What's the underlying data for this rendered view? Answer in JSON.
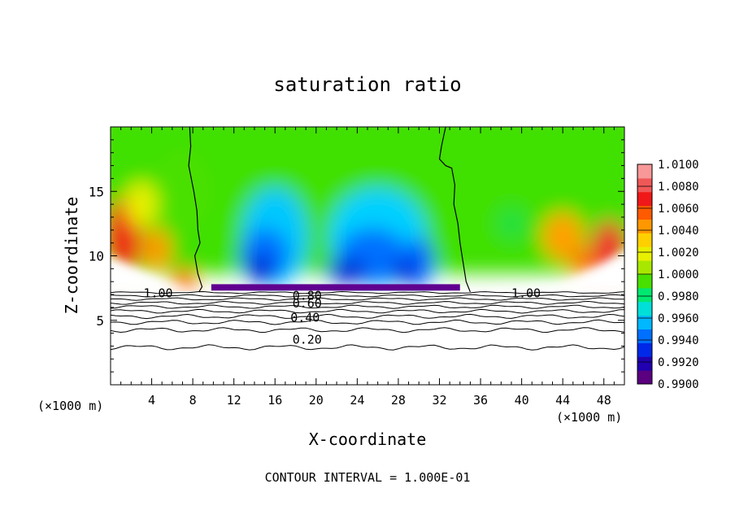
{
  "chart_data": {
    "type": "heatmap",
    "title": "saturation ratio",
    "xlabel": "X-coordinate",
    "ylabel": "Z-coordinate",
    "x_unit_left": "(×1000 m)",
    "x_unit_right": "(×1000 m)",
    "xlim": [
      0,
      50
    ],
    "ylim": [
      0,
      20
    ],
    "xticks": [
      4,
      8,
      12,
      16,
      20,
      24,
      28,
      32,
      36,
      40,
      44,
      48
    ],
    "yticks": [
      5,
      10,
      15
    ],
    "footer": "CONTOUR INTERVAL = 1.000E-01",
    "colorbar": {
      "labels": [
        "1.0100",
        "1.0080",
        "1.0060",
        "1.0040",
        "1.0020",
        "1.0000",
        "0.9980",
        "0.9960",
        "0.9940",
        "0.9920",
        "0.9900"
      ],
      "colors": [
        "#5a0080",
        "#2000b0",
        "#0028e8",
        "#0070ff",
        "#00b8ff",
        "#00e0d8",
        "#00e870",
        "#48e000",
        "#a8e800",
        "#e8f000",
        "#ffd000",
        "#ff9800",
        "#ff5a00",
        "#f01818",
        "#f05858",
        "#f89898"
      ]
    },
    "contour_labels": [
      {
        "text": "1.00",
        "x": 3.2,
        "z": 7.1
      },
      {
        "text": "1.00",
        "x": 39.0,
        "z": 7.1
      },
      {
        "text": "0.80",
        "x": 17.7,
        "z": 6.9
      },
      {
        "text": "0.60",
        "x": 17.7,
        "z": 6.3
      },
      {
        "text": "0.40",
        "x": 17.5,
        "z": 5.2
      },
      {
        "text": "0.20",
        "x": 17.7,
        "z": 3.5
      }
    ]
  }
}
